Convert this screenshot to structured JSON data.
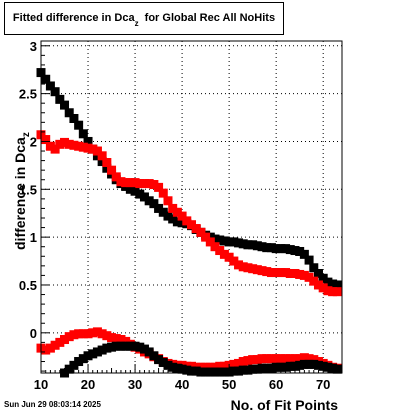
{
  "title": {
    "main": "Fitted difference in Dca",
    "subscript": "z",
    "rest": "  for Global Rec All NoHits"
  },
  "timestamp": "Sun Jun 29 08:03:14 2025",
  "chart_data": {
    "type": "scatter",
    "xlabel": "No. of Fit Points",
    "ylabel": "difference in Dca",
    "ylabel_subscript": "z",
    "xlim": [
      10,
      74
    ],
    "ylim": [
      -0.42,
      3.05
    ],
    "x_ticks": [
      10,
      20,
      30,
      40,
      50,
      60,
      70
    ],
    "y_ticks": [
      0,
      0.5,
      1,
      1.5,
      2,
      2.5,
      3
    ],
    "x_tick_labels": [
      "10",
      "20",
      "30",
      "40",
      "50",
      "60",
      "70"
    ],
    "y_tick_labels": [
      "0",
      "0.5",
      "1",
      "1.5",
      "2",
      "2.5",
      "3"
    ],
    "grid": true,
    "series": [
      {
        "color": "#000000",
        "x": [
          10,
          11,
          12,
          13,
          14,
          15,
          16,
          17,
          18,
          19,
          20,
          21,
          22,
          23,
          24,
          25,
          26,
          27,
          28,
          29,
          30,
          31,
          32,
          33,
          34,
          35,
          36,
          37,
          38,
          39,
          40,
          41,
          42,
          43,
          44,
          45,
          46,
          47,
          48,
          49,
          50,
          51,
          52,
          53,
          54,
          55,
          56,
          57,
          58,
          59,
          60,
          61,
          62,
          63,
          64,
          65,
          66,
          67,
          68,
          69,
          70,
          71,
          72,
          73
        ],
        "y": [
          2.72,
          2.65,
          2.58,
          2.52,
          2.44,
          2.38,
          2.3,
          2.24,
          2.17,
          2.08,
          2.0,
          1.92,
          1.85,
          1.79,
          1.72,
          1.66,
          1.6,
          1.56,
          1.53,
          1.5,
          1.48,
          1.45,
          1.42,
          1.38,
          1.35,
          1.3,
          1.26,
          1.22,
          1.19,
          1.16,
          1.15,
          1.14,
          1.12,
          1.08,
          1.05,
          1.02,
          1.0,
          0.98,
          0.97,
          0.96,
          0.95,
          0.95,
          0.94,
          0.93,
          0.92,
          0.92,
          0.91,
          0.9,
          0.89,
          0.89,
          0.88,
          0.88,
          0.88,
          0.87,
          0.86,
          0.85,
          0.82,
          0.76,
          0.68,
          0.62,
          0.57,
          0.53,
          0.51,
          0.5
        ]
      },
      {
        "color": "#ff0000",
        "x": [
          10,
          11,
          12,
          13,
          14,
          15,
          16,
          17,
          18,
          19,
          20,
          21,
          22,
          23,
          24,
          25,
          26,
          27,
          28,
          29,
          30,
          31,
          32,
          33,
          34,
          35,
          36,
          37,
          38,
          39,
          40,
          41,
          42,
          43,
          44,
          45,
          46,
          47,
          48,
          49,
          50,
          51,
          52,
          53,
          54,
          55,
          56,
          57,
          58,
          59,
          60,
          61,
          62,
          63,
          64,
          65,
          66,
          67,
          68,
          69,
          70,
          71,
          72,
          73
        ],
        "y": [
          2.07,
          2.02,
          1.95,
          1.92,
          1.97,
          1.99,
          1.97,
          1.96,
          1.95,
          1.94,
          1.93,
          1.92,
          1.9,
          1.85,
          1.78,
          1.7,
          1.63,
          1.58,
          1.57,
          1.57,
          1.57,
          1.56,
          1.56,
          1.56,
          1.55,
          1.52,
          1.46,
          1.38,
          1.3,
          1.26,
          1.22,
          1.17,
          1.13,
          1.09,
          1.05,
          1.0,
          0.95,
          0.9,
          0.86,
          0.82,
          0.79,
          0.75,
          0.71,
          0.69,
          0.68,
          0.67,
          0.66,
          0.65,
          0.64,
          0.63,
          0.63,
          0.63,
          0.63,
          0.62,
          0.62,
          0.61,
          0.6,
          0.58,
          0.54,
          0.5,
          0.47,
          0.44,
          0.43,
          0.43
        ]
      },
      {
        "color": "#ff0000",
        "x": [
          10,
          11,
          12,
          13,
          14,
          15,
          16,
          17,
          18,
          19,
          20,
          21,
          22,
          23,
          24,
          25,
          26,
          27,
          28,
          29,
          30,
          31,
          32,
          33,
          34,
          35,
          36,
          37,
          38,
          39,
          40,
          41,
          42,
          43,
          44,
          45,
          46,
          47,
          48,
          49,
          50,
          51,
          52,
          53,
          54,
          55,
          56,
          57,
          58,
          59,
          60,
          61,
          62,
          63,
          64,
          65,
          66,
          67,
          68,
          69,
          70,
          71,
          72,
          73
        ],
        "y": [
          -0.16,
          -0.18,
          -0.16,
          -0.13,
          -0.1,
          -0.07,
          -0.04,
          -0.02,
          -0.01,
          -0.01,
          -0.01,
          0.0,
          0.01,
          -0.01,
          -0.03,
          -0.05,
          -0.06,
          -0.07,
          -0.09,
          -0.12,
          -0.15,
          -0.17,
          -0.2,
          -0.22,
          -0.25,
          -0.27,
          -0.3,
          -0.32,
          -0.33,
          -0.34,
          -0.34,
          -0.35,
          -0.35,
          -0.36,
          -0.36,
          -0.36,
          -0.36,
          -0.36,
          -0.35,
          -0.35,
          -0.34,
          -0.33,
          -0.32,
          -0.3,
          -0.29,
          -0.28,
          -0.28,
          -0.27,
          -0.27,
          -0.27,
          -0.27,
          -0.27,
          -0.27,
          -0.27,
          -0.27,
          -0.27,
          -0.26,
          -0.27,
          -0.28,
          -0.3,
          -0.32,
          -0.34,
          -0.36,
          -0.37
        ]
      },
      {
        "color": "#000000",
        "x": [
          15,
          16,
          17,
          18,
          19,
          20,
          21,
          22,
          23,
          24,
          25,
          26,
          27,
          28,
          29,
          30,
          31,
          32,
          33,
          34,
          35,
          36,
          37,
          38,
          39,
          40,
          41,
          42,
          43,
          44,
          45,
          46,
          47,
          48,
          49,
          50,
          51,
          52,
          53,
          54,
          55,
          56,
          57,
          58,
          59,
          60,
          61,
          62,
          63,
          64,
          65,
          66,
          67,
          68,
          69,
          70,
          71,
          72,
          73
        ],
        "y": [
          -0.42,
          -0.38,
          -0.34,
          -0.3,
          -0.27,
          -0.24,
          -0.22,
          -0.2,
          -0.18,
          -0.16,
          -0.15,
          -0.14,
          -0.14,
          -0.14,
          -0.14,
          -0.14,
          -0.15,
          -0.17,
          -0.2,
          -0.24,
          -0.28,
          -0.31,
          -0.34,
          -0.36,
          -0.37,
          -0.38,
          -0.39,
          -0.4,
          -0.4,
          -0.41,
          -0.41,
          -0.41,
          -0.41,
          -0.41,
          -0.41,
          -0.41,
          -0.4,
          -0.4,
          -0.39,
          -0.39,
          -0.38,
          -0.38,
          -0.37,
          -0.37,
          -0.37,
          -0.36,
          -0.36,
          -0.36,
          -0.35,
          -0.35,
          -0.34,
          -0.33,
          -0.33,
          -0.33,
          -0.34,
          -0.35,
          -0.36,
          -0.37,
          -0.38
        ]
      }
    ]
  }
}
